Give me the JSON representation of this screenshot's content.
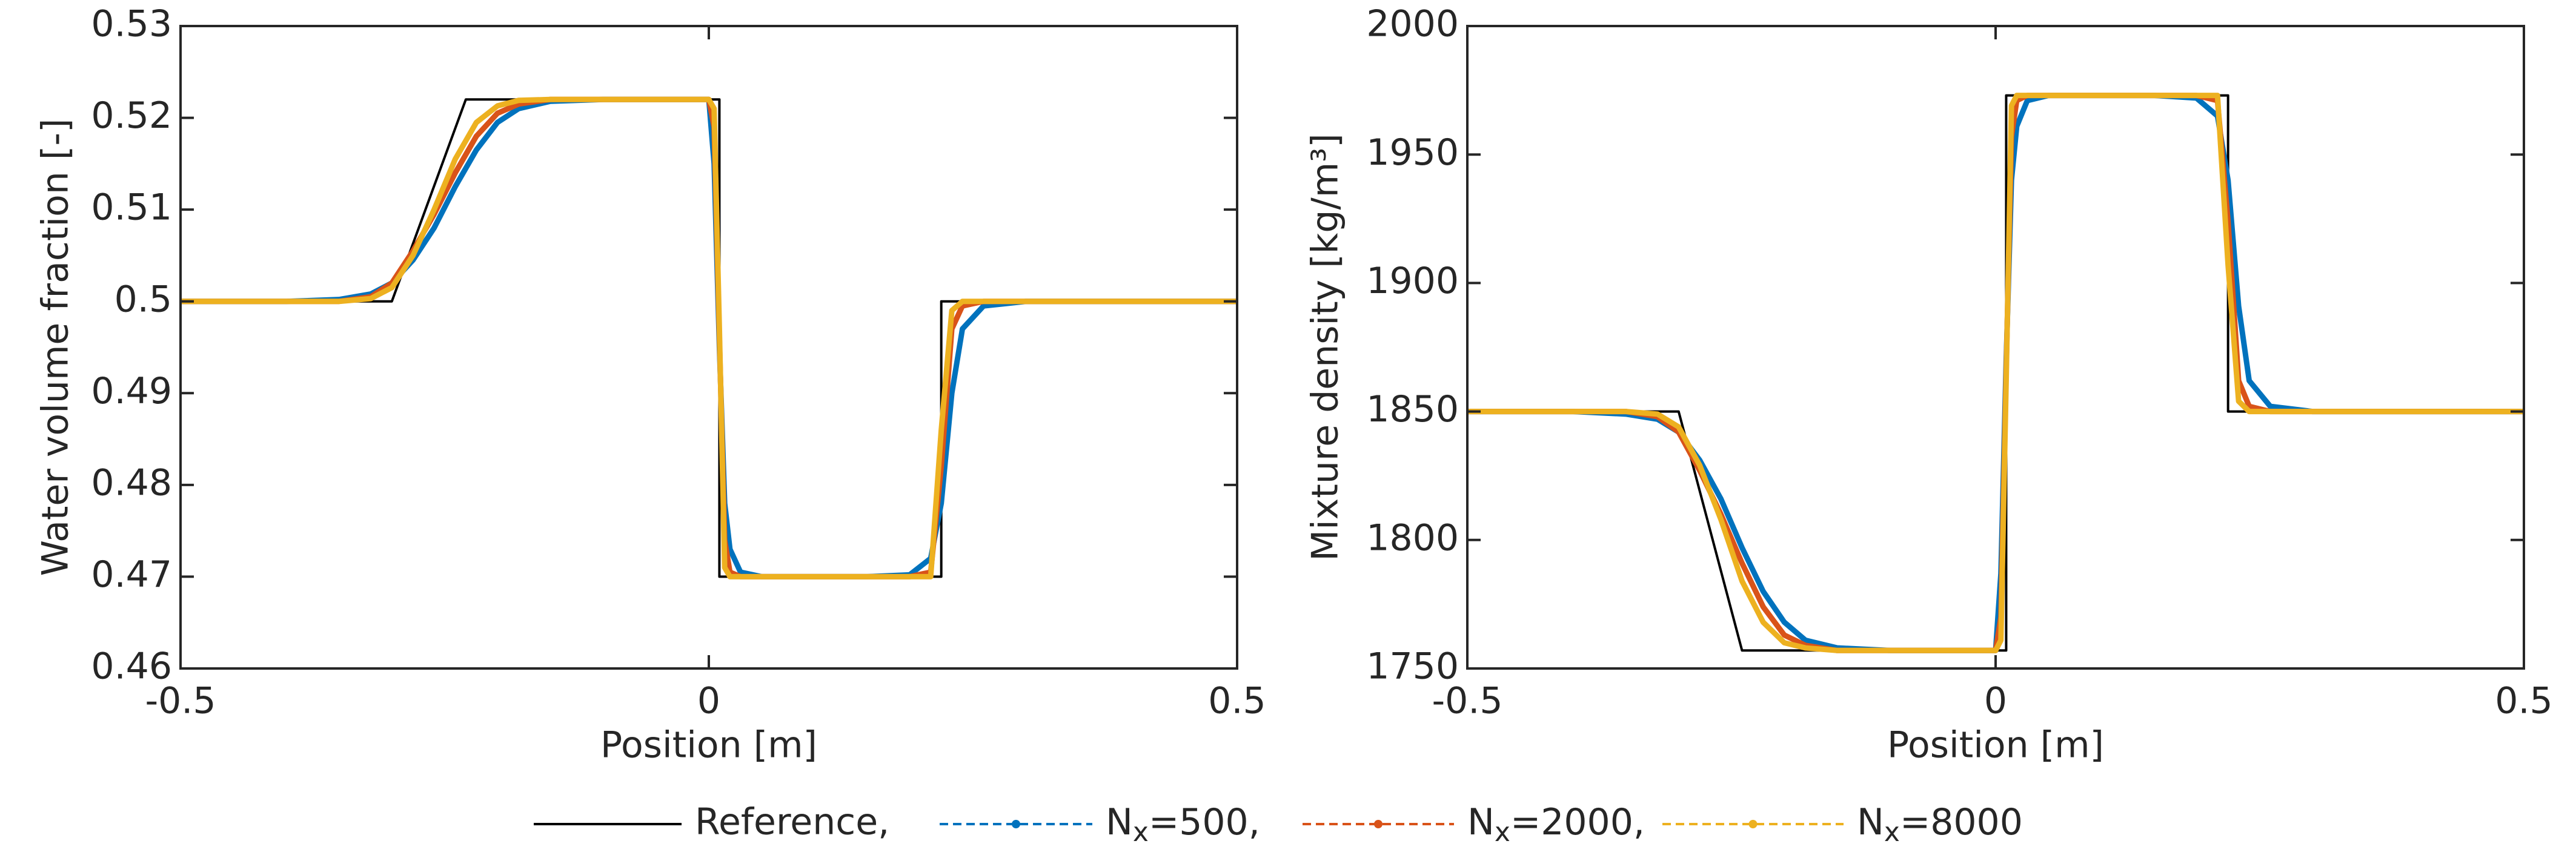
{
  "chart_data": [
    {
      "type": "line",
      "ylabel": "Water volume fraction [-]",
      "xlabel": "Position [m]",
      "xlim": [
        -0.5,
        0.5
      ],
      "ylim": [
        0.46,
        0.53
      ],
      "xticks": [
        -0.5,
        0,
        0.5
      ],
      "yticks": [
        0.46,
        0.47,
        0.48,
        0.49,
        0.5,
        0.51,
        0.52,
        0.53
      ],
      "series": [
        {
          "name": "Reference,",
          "color": "#000000",
          "x": [
            -0.5,
            -0.3,
            -0.23,
            0.01,
            0.01,
            0.22,
            0.22,
            0.5
          ],
          "values": [
            0.5,
            0.5,
            0.522,
            0.522,
            0.47,
            0.47,
            0.5,
            0.5
          ]
        },
        {
          "name": "Nx=500,",
          "color": "#0072bd",
          "x": [
            -0.5,
            -0.4,
            -0.35,
            -0.32,
            -0.3,
            -0.28,
            -0.26,
            -0.24,
            -0.22,
            -0.2,
            -0.18,
            -0.15,
            -0.1,
            0,
            0.005,
            0.01,
            0.015,
            0.02,
            0.03,
            0.05,
            0.1,
            0.15,
            0.19,
            0.21,
            0.22,
            0.23,
            0.24,
            0.26,
            0.3,
            0.4,
            0.5
          ],
          "values": [
            0.5,
            0.5,
            0.5002,
            0.5008,
            0.502,
            0.5045,
            0.508,
            0.5125,
            0.5165,
            0.5195,
            0.521,
            0.5218,
            0.522,
            0.522,
            0.515,
            0.495,
            0.478,
            0.473,
            0.4705,
            0.47,
            0.47,
            0.47,
            0.4702,
            0.472,
            0.478,
            0.49,
            0.497,
            0.4995,
            0.5,
            0.5,
            0.5
          ]
        },
        {
          "name": "Nx=2000,",
          "color": "#d95319",
          "x": [
            -0.5,
            -0.4,
            -0.35,
            -0.32,
            -0.3,
            -0.28,
            -0.26,
            -0.24,
            -0.22,
            -0.2,
            -0.18,
            -0.15,
            -0.1,
            0,
            0.005,
            0.01,
            0.015,
            0.02,
            0.03,
            0.05,
            0.1,
            0.15,
            0.19,
            0.21,
            0.22,
            0.23,
            0.24,
            0.26,
            0.3,
            0.4,
            0.5
          ],
          "values": [
            0.5,
            0.5,
            0.5,
            0.5005,
            0.502,
            0.5055,
            0.5095,
            0.514,
            0.518,
            0.5205,
            0.5215,
            0.522,
            0.522,
            0.522,
            0.519,
            0.496,
            0.474,
            0.4705,
            0.47,
            0.47,
            0.47,
            0.47,
            0.47,
            0.4705,
            0.482,
            0.497,
            0.4995,
            0.5,
            0.5,
            0.5,
            0.5
          ]
        },
        {
          "name": "Nx=8000",
          "color": "#edb120",
          "x": [
            -0.5,
            -0.4,
            -0.35,
            -0.32,
            -0.3,
            -0.28,
            -0.26,
            -0.24,
            -0.22,
            -0.2,
            -0.18,
            -0.15,
            -0.1,
            0,
            0.005,
            0.01,
            0.015,
            0.02,
            0.03,
            0.05,
            0.1,
            0.15,
            0.19,
            0.21,
            0.22,
            0.23,
            0.24,
            0.26,
            0.3,
            0.4,
            0.5
          ],
          "values": [
            0.5,
            0.5,
            0.5,
            0.5003,
            0.5015,
            0.505,
            0.51,
            0.5155,
            0.5195,
            0.5213,
            0.5219,
            0.522,
            0.522,
            0.522,
            0.521,
            0.497,
            0.471,
            0.47,
            0.47,
            0.47,
            0.47,
            0.47,
            0.47,
            0.47,
            0.486,
            0.499,
            0.5,
            0.5,
            0.5,
            0.5,
            0.5
          ]
        }
      ]
    },
    {
      "type": "line",
      "ylabel": "Mixture density [kg/m³]",
      "xlabel": "Position [m]",
      "xlim": [
        -0.5,
        0.5
      ],
      "ylim": [
        1750,
        2000
      ],
      "xticks": [
        -0.5,
        0,
        0.5
      ],
      "yticks": [
        1750,
        1800,
        1850,
        1900,
        1950,
        2000
      ],
      "series": [
        {
          "color": "#000000",
          "x": [
            -0.5,
            -0.3,
            -0.24,
            0.01,
            0.01,
            0.22,
            0.22,
            0.5
          ],
          "values": [
            1850,
            1850,
            1757,
            1757,
            1973,
            1973,
            1850,
            1850
          ]
        },
        {
          "color": "#0072bd",
          "x": [
            -0.5,
            -0.4,
            -0.35,
            -0.32,
            -0.3,
            -0.28,
            -0.26,
            -0.24,
            -0.22,
            -0.2,
            -0.18,
            -0.15,
            -0.1,
            0,
            0.005,
            0.01,
            0.015,
            0.02,
            0.03,
            0.05,
            0.1,
            0.15,
            0.19,
            0.21,
            0.22,
            0.23,
            0.24,
            0.26,
            0.3,
            0.4,
            0.5
          ],
          "values": [
            1850,
            1850,
            1849,
            1847,
            1842,
            1831,
            1816,
            1797,
            1780,
            1768,
            1761,
            1758,
            1757,
            1757,
            1787,
            1870,
            1940,
            1961,
            1971,
            1973,
            1973,
            1973,
            1972,
            1965,
            1940,
            1891,
            1862,
            1852,
            1850,
            1850,
            1850
          ]
        },
        {
          "color": "#d95319",
          "x": [
            -0.5,
            -0.4,
            -0.35,
            -0.32,
            -0.3,
            -0.28,
            -0.26,
            -0.24,
            -0.22,
            -0.2,
            -0.18,
            -0.15,
            -0.1,
            0,
            0.005,
            0.01,
            0.015,
            0.02,
            0.03,
            0.05,
            0.1,
            0.15,
            0.19,
            0.21,
            0.22,
            0.23,
            0.24,
            0.26,
            0.3,
            0.4,
            0.5
          ],
          "values": [
            1850,
            1850,
            1850,
            1848,
            1842,
            1827,
            1810,
            1791,
            1774,
            1763,
            1759,
            1757,
            1757,
            1757,
            1770,
            1866,
            1957,
            1971,
            1973,
            1973,
            1973,
            1973,
            1973,
            1971,
            1924,
            1862,
            1852,
            1850,
            1850,
            1850,
            1850
          ]
        },
        {
          "color": "#edb120",
          "x": [
            -0.5,
            -0.4,
            -0.35,
            -0.32,
            -0.3,
            -0.28,
            -0.26,
            -0.24,
            -0.22,
            -0.2,
            -0.18,
            -0.15,
            -0.1,
            0,
            0.005,
            0.01,
            0.015,
            0.02,
            0.03,
            0.05,
            0.1,
            0.15,
            0.19,
            0.21,
            0.22,
            0.23,
            0.24,
            0.26,
            0.3,
            0.4,
            0.5
          ],
          "values": [
            1850,
            1850,
            1850,
            1849,
            1844,
            1829,
            1808,
            1784,
            1768,
            1760,
            1758,
            1757,
            1757,
            1757,
            1761,
            1862,
            1969,
            1973,
            1973,
            1973,
            1973,
            1973,
            1973,
            1973,
            1907,
            1854,
            1850,
            1850,
            1850,
            1850,
            1850
          ]
        }
      ]
    }
  ]
}
